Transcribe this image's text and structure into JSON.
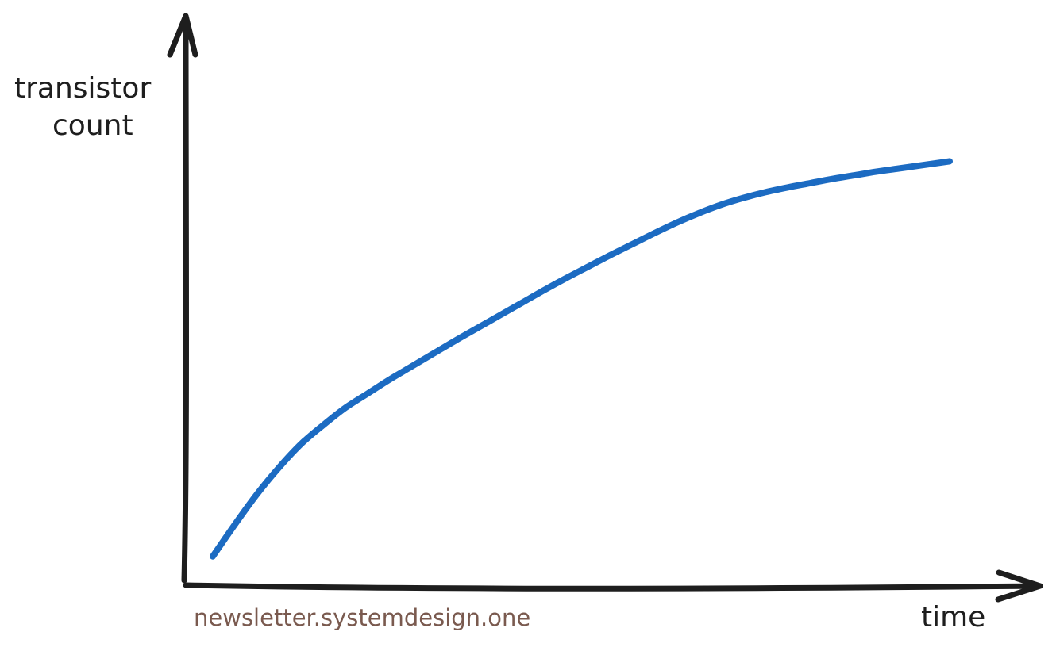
{
  "chart_data": {
    "type": "line",
    "ylabel_lines": [
      "transistor",
      "count"
    ],
    "xlabel": "time",
    "xlim": [
      0,
      100
    ],
    "ylim": [
      0,
      100
    ],
    "grid": false,
    "ticks": false,
    "series": [
      {
        "color": "#1c6bc2",
        "x": [
          0,
          3,
          6,
          9,
          12,
          15,
          18,
          21,
          24,
          27,
          30,
          33,
          36,
          39,
          42,
          45,
          48,
          51,
          54,
          57,
          60,
          63,
          66,
          69,
          72,
          75,
          78,
          81,
          84,
          87,
          90,
          93,
          96,
          100
        ],
        "y": [
          5.5,
          11.6,
          17.4,
          22.5,
          27,
          30.6,
          33.9,
          36.6,
          39.3,
          41.8,
          44.3,
          46.8,
          49.2,
          51.6,
          54,
          56.4,
          58.7,
          60.9,
          63.1,
          65.2,
          67.3,
          69.3,
          71.1,
          72.7,
          74,
          75.1,
          76,
          76.8,
          77.6,
          78.3,
          79,
          79.6,
          80.2,
          81
        ]
      }
    ]
  },
  "credit": {
    "text": "newsletter.systemdesign.one",
    "color": "#7a5a4f"
  }
}
